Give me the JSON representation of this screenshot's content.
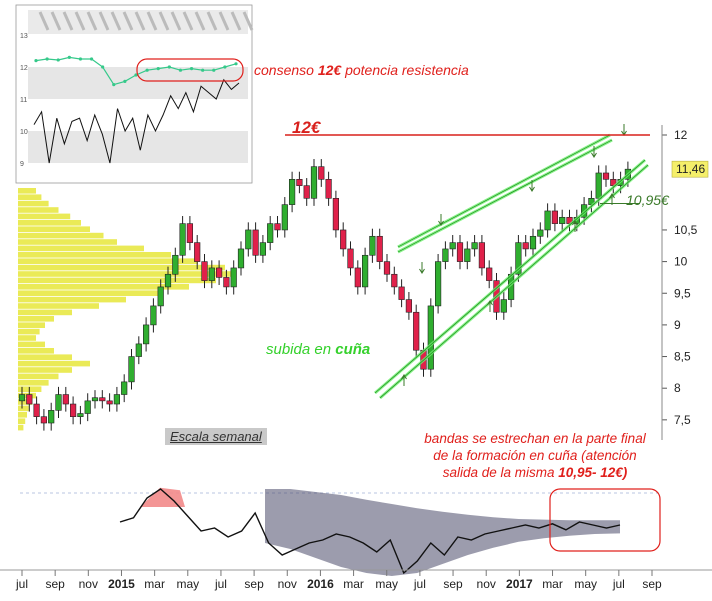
{
  "chart_data": [
    {
      "type": "candlestick",
      "title": "",
      "xlabel": "",
      "ylabel": "",
      "price_scale": [
        {
          "label": "12",
          "value": 12
        },
        {
          "label": "10,5",
          "value": 10.5
        },
        {
          "label": "10",
          "value": 10
        },
        {
          "label": "9,5",
          "value": 9.5
        },
        {
          "label": "9",
          "value": 9
        },
        {
          "label": "8,5",
          "value": 8.5
        },
        {
          "label": "8",
          "value": 8
        },
        {
          "label": "7,5",
          "value": 7.5
        }
      ],
      "last_price": {
        "label": "11,46",
        "value": 11.46
      },
      "resistance": {
        "label": "12€",
        "value": 12
      },
      "support": {
        "label": "10,95€",
        "value": 10.95
      },
      "x_ticks": [
        "jul",
        "sep",
        "nov",
        "2015",
        "mar",
        "may",
        "jul",
        "sep",
        "nov",
        "2016",
        "mar",
        "may",
        "jul",
        "sep",
        "nov",
        "2017",
        "mar",
        "may",
        "jul",
        "sep"
      ],
      "weekly_closes": [
        7.9,
        7.75,
        7.55,
        7.45,
        7.65,
        7.9,
        7.75,
        7.55,
        7.6,
        7.8,
        7.85,
        7.8,
        7.75,
        7.9,
        8.1,
        8.5,
        8.7,
        9.0,
        9.3,
        9.6,
        9.8,
        10.1,
        10.6,
        10.3,
        10.0,
        9.7,
        9.9,
        9.75,
        9.6,
        9.9,
        10.2,
        10.5,
        10.1,
        10.3,
        10.6,
        10.5,
        10.9,
        11.3,
        11.2,
        11.0,
        11.5,
        11.3,
        11.0,
        10.5,
        10.2,
        9.9,
        9.6,
        10.1,
        10.4,
        10.0,
        9.8,
        9.6,
        9.4,
        9.2,
        8.6,
        8.3,
        9.3,
        10.0,
        10.2,
        10.3,
        10.0,
        10.2,
        10.3,
        9.9,
        9.7,
        9.2,
        9.4,
        9.8,
        10.3,
        10.2,
        10.4,
        10.5,
        10.8,
        10.6,
        10.7,
        10.6,
        10.7,
        10.9,
        11.0,
        11.4,
        11.3,
        11.2,
        11.3,
        11.46
      ],
      "annotations": [
        "consenso 12€ potencia resistencia",
        "subida en cuña",
        "Escala semanal",
        "bandas se estrechan en la parte final de la formación en cuña (atención salida de la misma 10,95- 12€)"
      ]
    },
    {
      "type": "line",
      "title": "",
      "y_ticks": [
        13,
        12,
        11,
        10,
        9
      ],
      "consensus": [
        12.2,
        12.25,
        12.22,
        12.3,
        12.25,
        12.25,
        12.0,
        11.45,
        11.55,
        11.75,
        11.9,
        11.95,
        12.0,
        11.9,
        11.95,
        11.9,
        11.9,
        12.0,
        12.1
      ],
      "price": [
        10.2,
        10.6,
        9.0,
        10.4,
        9.6,
        10.3,
        10.4,
        9.7,
        10.5,
        9.9,
        9.0,
        10.7,
        10.0,
        10.4,
        9.4,
        10.5,
        10.0,
        10.5,
        11.1,
        10.7,
        11.2,
        10.6,
        11.4,
        11.2,
        11.0,
        11.6,
        11.3,
        11.5
      ]
    },
    {
      "type": "area",
      "title": "",
      "oscillator": [
        0.05,
        0.12,
        0.45,
        0.6,
        0.4,
        0.15,
        -0.1,
        -0.05,
        -0.2,
        -0.1,
        0.2,
        -0.3,
        -0.5,
        -0.4,
        -0.3,
        -0.25,
        -0.15,
        -0.2,
        -0.3,
        -0.45,
        -0.25,
        -0.8,
        -0.6,
        -0.3,
        -0.5,
        -0.2,
        -0.25,
        -0.15,
        -0.1,
        -0.05,
        0.0,
        -0.05,
        0.02,
        -0.08,
        0.05,
        0.0,
        -0.05,
        0.0
      ],
      "band_upper": [
        0.6,
        0.6,
        0.55,
        0.5,
        0.42,
        0.35,
        0.28,
        0.22,
        0.17,
        0.13,
        0.1,
        0.09,
        0.08,
        0.08,
        0.08
      ],
      "band_lower": [
        -0.3,
        -0.4,
        -0.55,
        -0.7,
        -0.8,
        -0.85,
        -0.8,
        -0.65,
        -0.5,
        -0.38,
        -0.28,
        -0.22,
        -0.18,
        -0.15,
        -0.14
      ]
    }
  ],
  "annotations": {
    "consenso": "consenso ",
    "consenso_bold": "12€",
    "consenso_rest": " potencia resistencia",
    "resistance_label": "12€",
    "support_label": "10,95€",
    "subida": "subida en ",
    "subida_bold": "cuña",
    "escala": "Escala semanal",
    "bandas_1": "bandas se estrechan en la parte final",
    "bandas_2": "de la formación en cuña (atención",
    "bandas_3": "salida de la misma ",
    "bandas_bold": "10,95- 12€)"
  },
  "colors": {
    "up": "#2fae2f",
    "down": "#e0214a",
    "volume_profile": "#e6e63a",
    "channel": "#6ef06e",
    "resistance": "#d8201c",
    "consensus": "#35c98a",
    "band": "#4a4a6a"
  }
}
